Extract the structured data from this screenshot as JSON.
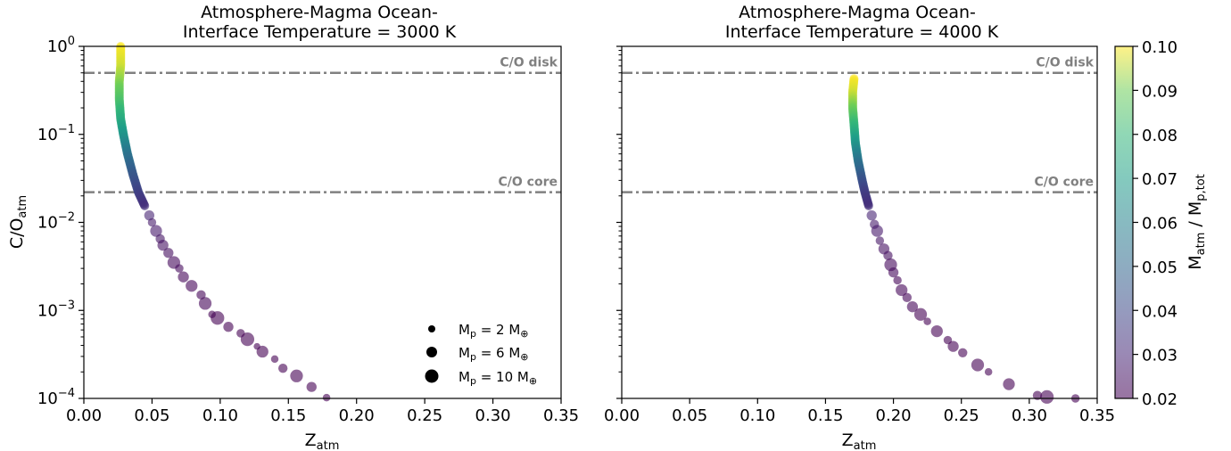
{
  "figure": {
    "colorbar": {
      "label_main": "M",
      "label_sub1": "atm",
      "label_mid": " / M",
      "label_sub2": "p,tot",
      "ticks": [
        "0.02",
        "0.03",
        "0.04",
        "0.05",
        "0.06",
        "0.07",
        "0.08",
        "0.09",
        "0.10"
      ],
      "range": [
        0.02,
        0.1
      ],
      "colormap": "viridis",
      "alpha": 0.55
    },
    "ref_line_color": "#808080",
    "legend": {
      "items": [
        {
          "prefix": "M",
          "sub": "p",
          "text": " = 2 M",
          "mass": 2
        },
        {
          "prefix": "M",
          "sub": "p",
          "text": " = 6 M",
          "mass": 6
        },
        {
          "prefix": "M",
          "sub": "p",
          "text": " = 10 M",
          "mass": 10
        }
      ],
      "symbol": "⊕",
      "placement": "lower-right of left panel"
    }
  },
  "chart_data": [
    {
      "type": "scatter",
      "title_line1": "Atmosphere-Magma Ocean-",
      "title_line2": "Interface Temperature = 3000 K",
      "xlabel_main": "Z",
      "xlabel_sub": "atm",
      "ylabel_main": "C/O",
      "ylabel_sub": "atm",
      "xlim": [
        0,
        0.35
      ],
      "ylim": [
        0.0001,
        1
      ],
      "yscale": "log",
      "x_ticks": [
        "0.00",
        "0.05",
        "0.10",
        "0.15",
        "0.20",
        "0.25",
        "0.30",
        "0.35"
      ],
      "y_ticks": [
        {
          "base": "10",
          "exp": "0",
          "value": 1
        },
        {
          "base": "10",
          "exp": "−1",
          "value": 0.1
        },
        {
          "base": "10",
          "exp": "−2",
          "value": 0.01
        },
        {
          "base": "10",
          "exp": "−3",
          "value": 0.001
        },
        {
          "base": "10",
          "exp": "−4",
          "value": 0.0001
        }
      ],
      "reference_lines": [
        {
          "label": "C/O disk",
          "y": 0.5
        },
        {
          "label": "C/O core",
          "y": 0.022
        }
      ],
      "dense_curve": [
        {
          "x": 0.027,
          "y": 1.0,
          "c": 0.1
        },
        {
          "x": 0.027,
          "y": 0.6,
          "c": 0.097
        },
        {
          "x": 0.026,
          "y": 0.4,
          "c": 0.092
        },
        {
          "x": 0.026,
          "y": 0.25,
          "c": 0.085
        },
        {
          "x": 0.027,
          "y": 0.15,
          "c": 0.076
        },
        {
          "x": 0.029,
          "y": 0.1,
          "c": 0.068
        },
        {
          "x": 0.032,
          "y": 0.06,
          "c": 0.055
        },
        {
          "x": 0.036,
          "y": 0.035,
          "c": 0.045
        },
        {
          "x": 0.04,
          "y": 0.022,
          "c": 0.038
        },
        {
          "x": 0.045,
          "y": 0.015,
          "c": 0.032
        }
      ],
      "points": [
        {
          "x": 0.048,
          "y": 0.012,
          "c": 0.029,
          "m": 6
        },
        {
          "x": 0.05,
          "y": 0.01,
          "c": 0.027,
          "m": 4
        },
        {
          "x": 0.053,
          "y": 0.008,
          "c": 0.026,
          "m": 8
        },
        {
          "x": 0.056,
          "y": 0.0065,
          "c": 0.025,
          "m": 5
        },
        {
          "x": 0.058,
          "y": 0.0055,
          "c": 0.024,
          "m": 7
        },
        {
          "x": 0.062,
          "y": 0.0045,
          "c": 0.023,
          "m": 6
        },
        {
          "x": 0.066,
          "y": 0.0035,
          "c": 0.022,
          "m": 9
        },
        {
          "x": 0.07,
          "y": 0.003,
          "c": 0.022,
          "m": 4
        },
        {
          "x": 0.073,
          "y": 0.0024,
          "c": 0.021,
          "m": 7
        },
        {
          "x": 0.079,
          "y": 0.0019,
          "c": 0.021,
          "m": 8
        },
        {
          "x": 0.086,
          "y": 0.0015,
          "c": 0.021,
          "m": 5
        },
        {
          "x": 0.089,
          "y": 0.0012,
          "c": 0.021,
          "m": 9
        },
        {
          "x": 0.094,
          "y": 0.0009,
          "c": 0.02,
          "m": 3
        },
        {
          "x": 0.098,
          "y": 0.00082,
          "c": 0.02,
          "m": 10
        },
        {
          "x": 0.106,
          "y": 0.00065,
          "c": 0.02,
          "m": 6
        },
        {
          "x": 0.115,
          "y": 0.00055,
          "c": 0.02,
          "m": 4
        },
        {
          "x": 0.12,
          "y": 0.00047,
          "c": 0.02,
          "m": 10
        },
        {
          "x": 0.127,
          "y": 0.00039,
          "c": 0.02,
          "m": 2
        },
        {
          "x": 0.131,
          "y": 0.00034,
          "c": 0.02,
          "m": 8
        },
        {
          "x": 0.14,
          "y": 0.00028,
          "c": 0.02,
          "m": 3
        },
        {
          "x": 0.146,
          "y": 0.00022,
          "c": 0.02,
          "m": 5
        },
        {
          "x": 0.156,
          "y": 0.00018,
          "c": 0.02,
          "m": 9
        },
        {
          "x": 0.167,
          "y": 0.000135,
          "c": 0.02,
          "m": 6
        },
        {
          "x": 0.178,
          "y": 0.000102,
          "c": 0.02,
          "m": 3
        }
      ]
    },
    {
      "type": "scatter",
      "title_line1": "Atmosphere-Magma Ocean-",
      "title_line2": "Interface Temperature = 4000 K",
      "xlabel_main": "Z",
      "xlabel_sub": "atm",
      "xlim": [
        0,
        0.35
      ],
      "ylim": [
        0.0001,
        1
      ],
      "yscale": "log",
      "x_ticks": [
        "0.00",
        "0.05",
        "0.10",
        "0.15",
        "0.20",
        "0.25",
        "0.30",
        "0.35"
      ],
      "reference_lines": [
        {
          "label": "C/O disk",
          "y": 0.5
        },
        {
          "label": "C/O core",
          "y": 0.022
        }
      ],
      "dense_curve": [
        {
          "x": 0.171,
          "y": 0.43,
          "c": 0.1
        },
        {
          "x": 0.17,
          "y": 0.3,
          "c": 0.097
        },
        {
          "x": 0.17,
          "y": 0.2,
          "c": 0.09
        },
        {
          "x": 0.171,
          "y": 0.13,
          "c": 0.08
        },
        {
          "x": 0.172,
          "y": 0.08,
          "c": 0.068
        },
        {
          "x": 0.174,
          "y": 0.05,
          "c": 0.055
        },
        {
          "x": 0.177,
          "y": 0.03,
          "c": 0.043
        },
        {
          "x": 0.179,
          "y": 0.022,
          "c": 0.037
        },
        {
          "x": 0.182,
          "y": 0.015,
          "c": 0.032
        }
      ],
      "points": [
        {
          "x": 0.184,
          "y": 0.012,
          "c": 0.029,
          "m": 6
        },
        {
          "x": 0.186,
          "y": 0.0095,
          "c": 0.027,
          "m": 5
        },
        {
          "x": 0.188,
          "y": 0.008,
          "c": 0.026,
          "m": 8
        },
        {
          "x": 0.19,
          "y": 0.0062,
          "c": 0.025,
          "m": 4
        },
        {
          "x": 0.193,
          "y": 0.005,
          "c": 0.024,
          "m": 7
        },
        {
          "x": 0.196,
          "y": 0.0042,
          "c": 0.023,
          "m": 5
        },
        {
          "x": 0.198,
          "y": 0.0033,
          "c": 0.022,
          "m": 9
        },
        {
          "x": 0.2,
          "y": 0.0027,
          "c": 0.022,
          "m": 6
        },
        {
          "x": 0.203,
          "y": 0.0022,
          "c": 0.021,
          "m": 4
        },
        {
          "x": 0.206,
          "y": 0.0017,
          "c": 0.021,
          "m": 8
        },
        {
          "x": 0.21,
          "y": 0.0014,
          "c": 0.021,
          "m": 5
        },
        {
          "x": 0.214,
          "y": 0.0011,
          "c": 0.021,
          "m": 7
        },
        {
          "x": 0.22,
          "y": 0.0009,
          "c": 0.02,
          "m": 9
        },
        {
          "x": 0.225,
          "y": 0.00075,
          "c": 0.02,
          "m": 3
        },
        {
          "x": 0.232,
          "y": 0.00058,
          "c": 0.02,
          "m": 8
        },
        {
          "x": 0.24,
          "y": 0.00046,
          "c": 0.02,
          "m": 4
        },
        {
          "x": 0.244,
          "y": 0.00039,
          "c": 0.02,
          "m": 7
        },
        {
          "x": 0.251,
          "y": 0.00033,
          "c": 0.02,
          "m": 5
        },
        {
          "x": 0.262,
          "y": 0.00024,
          "c": 0.02,
          "m": 9
        },
        {
          "x": 0.27,
          "y": 0.0002,
          "c": 0.02,
          "m": 3
        },
        {
          "x": 0.285,
          "y": 0.000145,
          "c": 0.02,
          "m": 8
        },
        {
          "x": 0.306,
          "y": 0.000108,
          "c": 0.02,
          "m": 5
        },
        {
          "x": 0.313,
          "y": 0.000104,
          "c": 0.02,
          "m": 10
        },
        {
          "x": 0.334,
          "y": 0.0001,
          "c": 0.02,
          "m": 4
        }
      ]
    }
  ]
}
